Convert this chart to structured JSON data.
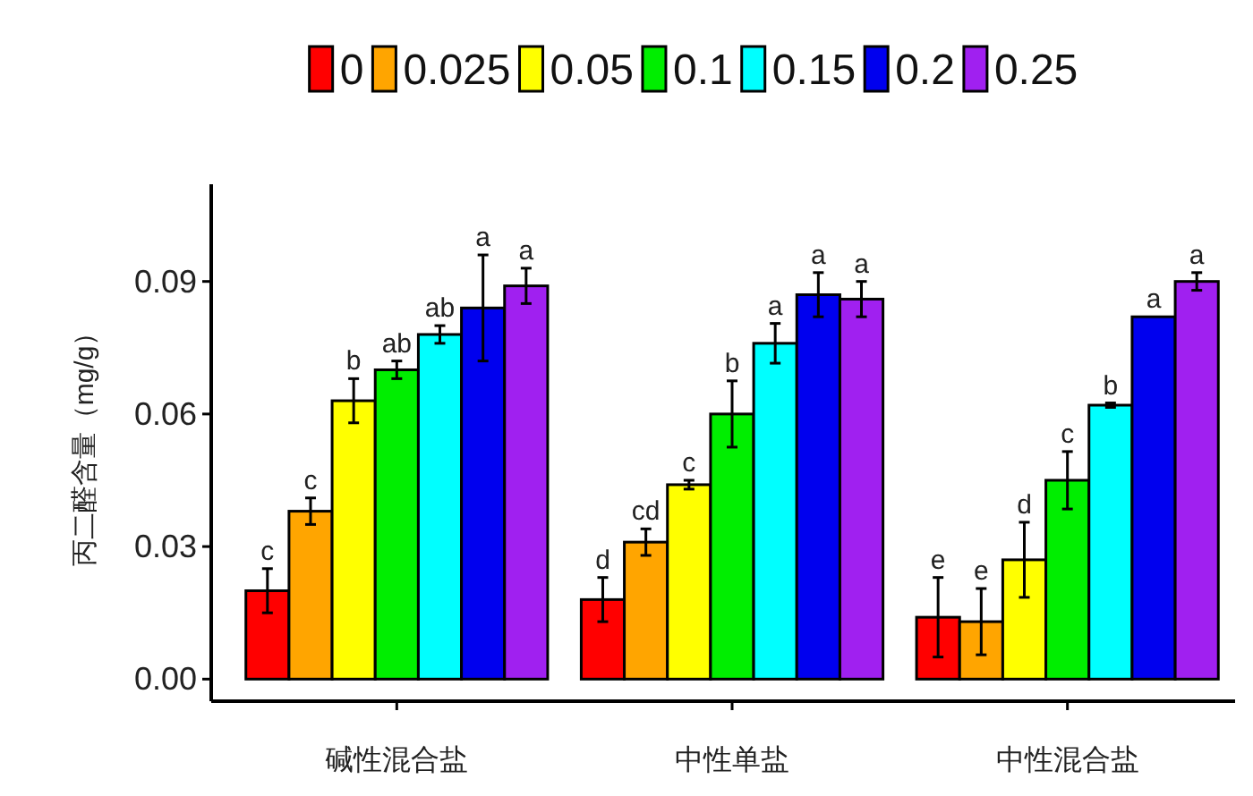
{
  "chart_data": {
    "type": "bar",
    "ylabel": "丙二醛含量（mg/g）",
    "categories": [
      "碱性混合盐",
      "中性单盐",
      "中性混合盐"
    ],
    "series": [
      {
        "name": "0",
        "color": "#ff0000",
        "values": [
          0.02,
          0.018,
          0.014
        ],
        "errors": [
          0.005,
          0.005,
          0.009
        ],
        "value_labels": [
          "c",
          "d",
          "e"
        ]
      },
      {
        "name": "0.025",
        "color": "#ffa500",
        "values": [
          0.038,
          0.031,
          0.013
        ],
        "errors": [
          0.003,
          0.003,
          0.0075
        ],
        "value_labels": [
          "c",
          "cd",
          "e"
        ]
      },
      {
        "name": "0.05",
        "color": "#ffff00",
        "values": [
          0.063,
          0.044,
          0.027
        ],
        "errors": [
          0.005,
          0.001,
          0.0085
        ],
        "value_labels": [
          "b",
          "c",
          "d"
        ]
      },
      {
        "name": "0.1",
        "color": "#00ee00",
        "values": [
          0.07,
          0.06,
          0.045
        ],
        "errors": [
          0.002,
          0.0075,
          0.0065
        ],
        "value_labels": [
          "ab",
          "b",
          "c"
        ]
      },
      {
        "name": "0.15",
        "color": "#00ffff",
        "values": [
          0.078,
          0.076,
          0.062
        ],
        "errors": [
          0.002,
          0.0045,
          0.0005
        ],
        "value_labels": [
          "ab",
          "a",
          "b"
        ]
      },
      {
        "name": "0.2",
        "color": "#0000ee",
        "values": [
          0.084,
          0.087,
          0.082
        ],
        "errors": [
          0.012,
          0.005,
          null
        ],
        "value_labels": [
          "a",
          "a",
          "a"
        ]
      },
      {
        "name": "0.25",
        "color": "#a020f0",
        "values": [
          0.089,
          0.086,
          0.09
        ],
        "errors": [
          0.004,
          0.004,
          0.002
        ],
        "value_labels": [
          "a",
          "a",
          "a"
        ]
      }
    ],
    "ylim": [
      -0.005,
      0.112
    ],
    "yticks": [
      {
        "value": 0,
        "label": "0.00"
      },
      {
        "value": 0.03,
        "label": "0.03"
      },
      {
        "value": 0.06,
        "label": "0.06"
      },
      {
        "value": 0.09,
        "label": "0.09"
      }
    ],
    "grid": false,
    "legend": "top"
  }
}
